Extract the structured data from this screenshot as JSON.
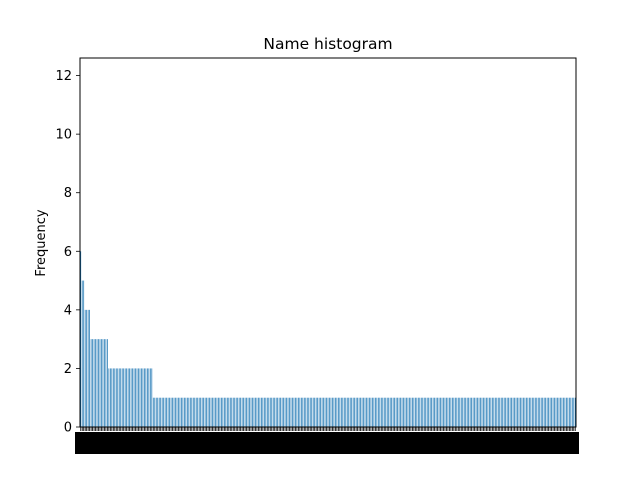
{
  "chart_data": {
    "type": "bar",
    "title": "Name histogram",
    "xlabel": "",
    "ylabel": "Frequency",
    "ylim": [
      0,
      12.6
    ],
    "yticks": [
      0,
      2,
      4,
      6,
      8,
      10,
      12
    ],
    "grid": false,
    "bar_color": "#1f77b4",
    "values": [
      6,
      5,
      5,
      4,
      4,
      4,
      4,
      3,
      3,
      3,
      3,
      3,
      3,
      3,
      3,
      3,
      3,
      3,
      3,
      2,
      2,
      2,
      2,
      2,
      2,
      2,
      2,
      2,
      2,
      2,
      2,
      2,
      2,
      2,
      2,
      2,
      2,
      2,
      2,
      2,
      2,
      2,
      2,
      2,
      2,
      2,
      2,
      2,
      2,
      1,
      1,
      1,
      1,
      1,
      1,
      1,
      1,
      1,
      1,
      1,
      1,
      1,
      1,
      1,
      1,
      1,
      1,
      1,
      1,
      1,
      1,
      1,
      1,
      1,
      1,
      1,
      1,
      1,
      1,
      1,
      1,
      1,
      1,
      1,
      1,
      1,
      1,
      1,
      1,
      1,
      1,
      1,
      1,
      1,
      1,
      1,
      1,
      1,
      1,
      1,
      1,
      1,
      1,
      1,
      1,
      1,
      1,
      1,
      1,
      1,
      1,
      1,
      1,
      1,
      1,
      1,
      1,
      1,
      1,
      1,
      1,
      1,
      1,
      1,
      1,
      1,
      1,
      1,
      1,
      1,
      1,
      1,
      1,
      1,
      1,
      1,
      1,
      1,
      1,
      1,
      1,
      1,
      1,
      1,
      1,
      1,
      1,
      1,
      1,
      1,
      1,
      1,
      1,
      1,
      1,
      1,
      1,
      1,
      1,
      1,
      1,
      1,
      1,
      1,
      1,
      1,
      1,
      1,
      1,
      1,
      1,
      1,
      1,
      1,
      1,
      1,
      1,
      1,
      1,
      1,
      1,
      1,
      1,
      1,
      1,
      1,
      1,
      1,
      1,
      1,
      1,
      1,
      1,
      1,
      1,
      1,
      1,
      1,
      1,
      1,
      1,
      1,
      1,
      1,
      1,
      1,
      1,
      1,
      1,
      1,
      1,
      1,
      1,
      1,
      1,
      1,
      1,
      1,
      1,
      1,
      1,
      1,
      1,
      1,
      1,
      1,
      1,
      1,
      1,
      1,
      1,
      1,
      1,
      1,
      1,
      1,
      1,
      1,
      1,
      1,
      1,
      1,
      1,
      1,
      1,
      1,
      1,
      1,
      1,
      1,
      1,
      1,
      1,
      1,
      1,
      1,
      1,
      1,
      1,
      1,
      1,
      1,
      1,
      1,
      1,
      1,
      1,
      1,
      1,
      1,
      1,
      1,
      1,
      1,
      1,
      1,
      1,
      1,
      1,
      1,
      1,
      1,
      1,
      1,
      1,
      1,
      1,
      1,
      1,
      1,
      1,
      1,
      1,
      1,
      1,
      1,
      1,
      1,
      1,
      1,
      1,
      1,
      1,
      1,
      1,
      1,
      1,
      1,
      1,
      1,
      1,
      1,
      1,
      1,
      1,
      1,
      1,
      1,
      1,
      1,
      1,
      1,
      1,
      1,
      1,
      1,
      1,
      1,
      1,
      1,
      1,
      1,
      1,
      1,
      1
    ]
  }
}
